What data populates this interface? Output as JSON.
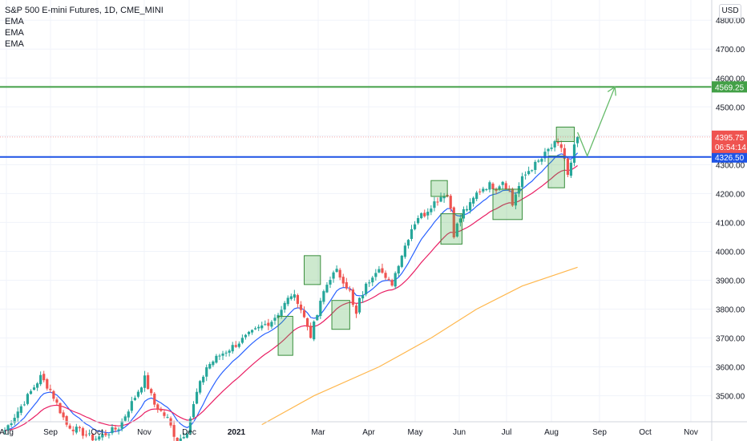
{
  "legend": {
    "title": "S&P 500 E-mini Futures, 1D, CME_MINI",
    "indicators": [
      "EMA",
      "EMA",
      "EMA"
    ]
  },
  "currency": "USD",
  "colors": {
    "up": "#26a69a",
    "down": "#ef5350",
    "ema_fast": "#2962ff",
    "ema_mid": "#e91e63",
    "ema_slow": "#ffb74d",
    "support_line": "#1e53e5",
    "target_line": "#43a047",
    "box_fill": "rgba(76,175,80,0.28)",
    "box_stroke": "#388e3c"
  },
  "chart_data": {
    "type": "candlestick",
    "title": "S&P 500 E-mini Futures, 1D, CME_MINI",
    "x_ticks": [
      "Aug",
      "Sep",
      "Oct",
      "Nov",
      "Dec",
      "2021",
      "Mar",
      "Apr",
      "May",
      "Jun",
      "Jul",
      "Aug",
      "Sep",
      "Oct",
      "Nov"
    ],
    "y_ticks": [
      "3500.00",
      "3600.00",
      "3700.00",
      "3800.00",
      "3900.00",
      "4000.00",
      "4100.00",
      "4200.00",
      "4300.00",
      "4400.00",
      "4500.00",
      "4600.00",
      "4700.00",
      "4800.00"
    ],
    "ylim": [
      3410,
      4870
    ],
    "horizontal_levels": [
      {
        "label": "4569.25",
        "value": 4569.25,
        "color": "#43a047"
      },
      {
        "label": "4326.50",
        "value": 4326.5,
        "color": "#1e53e5"
      }
    ],
    "last_price": {
      "label": "4395.75",
      "value": 4395.75,
      "countdown": "06:54:14"
    },
    "close_path": [
      {
        "d": 0,
        "v": 3380
      },
      {
        "d": 12,
        "v": 3480
      },
      {
        "d": 22,
        "v": 3565
      },
      {
        "d": 28,
        "v": 3520
      },
      {
        "d": 38,
        "v": 3400
      },
      {
        "d": 55,
        "v": 3350
      },
      {
        "d": 70,
        "v": 3390
      },
      {
        "d": 86,
        "v": 3560
      },
      {
        "d": 92,
        "v": 3470
      },
      {
        "d": 100,
        "v": 3420
      },
      {
        "d": 106,
        "v": 3340
      },
      {
        "d": 112,
        "v": 3380
      },
      {
        "d": 118,
        "v": 3510
      },
      {
        "d": 124,
        "v": 3600
      },
      {
        "d": 132,
        "v": 3640
      },
      {
        "d": 140,
        "v": 3670
      },
      {
        "d": 150,
        "v": 3710
      },
      {
        "d": 158,
        "v": 3740
      },
      {
        "d": 164,
        "v": 3760
      },
      {
        "d": 170,
        "v": 3800
      },
      {
        "d": 176,
        "v": 3850
      },
      {
        "d": 180,
        "v": 3830
      },
      {
        "d": 184,
        "v": 3770
      },
      {
        "d": 188,
        "v": 3710
      },
      {
        "d": 192,
        "v": 3780
      },
      {
        "d": 196,
        "v": 3860
      },
      {
        "d": 200,
        "v": 3910
      },
      {
        "d": 204,
        "v": 3930
      },
      {
        "d": 208,
        "v": 3900
      },
      {
        "d": 212,
        "v": 3860
      },
      {
        "d": 214,
        "v": 3810
      },
      {
        "d": 216,
        "v": 3780
      },
      {
        "d": 218,
        "v": 3830
      },
      {
        "d": 222,
        "v": 3880
      },
      {
        "d": 226,
        "v": 3920
      },
      {
        "d": 230,
        "v": 3950
      },
      {
        "d": 234,
        "v": 3900
      },
      {
        "d": 238,
        "v": 3890
      },
      {
        "d": 242,
        "v": 3960
      },
      {
        "d": 246,
        "v": 4020
      },
      {
        "d": 250,
        "v": 4080
      },
      {
        "d": 254,
        "v": 4120
      },
      {
        "d": 258,
        "v": 4130
      },
      {
        "d": 262,
        "v": 4160
      },
      {
        "d": 266,
        "v": 4180
      },
      {
        "d": 270,
        "v": 4200
      },
      {
        "d": 272,
        "v": 4190
      },
      {
        "d": 274,
        "v": 4150
      },
      {
        "d": 276,
        "v": 4060
      },
      {
        "d": 278,
        "v": 4090
      },
      {
        "d": 282,
        "v": 4140
      },
      {
        "d": 286,
        "v": 4160
      },
      {
        "d": 290,
        "v": 4200
      },
      {
        "d": 294,
        "v": 4220
      },
      {
        "d": 298,
        "v": 4230
      },
      {
        "d": 302,
        "v": 4220
      },
      {
        "d": 306,
        "v": 4245
      },
      {
        "d": 310,
        "v": 4210
      },
      {
        "d": 312,
        "v": 4160
      },
      {
        "d": 314,
        "v": 4200
      },
      {
        "d": 318,
        "v": 4250
      },
      {
        "d": 322,
        "v": 4280
      },
      {
        "d": 326,
        "v": 4300
      },
      {
        "d": 330,
        "v": 4320
      },
      {
        "d": 334,
        "v": 4350
      },
      {
        "d": 338,
        "v": 4370
      },
      {
        "d": 342,
        "v": 4360
      },
      {
        "d": 344,
        "v": 4320
      },
      {
        "d": 346,
        "v": 4260
      },
      {
        "d": 348,
        "v": 4300
      },
      {
        "d": 350,
        "v": 4360
      },
      {
        "d": 352,
        "v": 4395
      }
    ],
    "ema_slow_path": [
      {
        "d": 158,
        "v": 3400
      },
      {
        "d": 190,
        "v": 3500
      },
      {
        "d": 230,
        "v": 3600
      },
      {
        "d": 262,
        "v": 3700
      },
      {
        "d": 290,
        "v": 3800
      },
      {
        "d": 318,
        "v": 3880
      },
      {
        "d": 352,
        "v": 3945
      }
    ]
  },
  "annotations": {
    "boxes": [
      {
        "d1": 168,
        "d2": 177,
        "v1": 3640,
        "v2": 3775
      },
      {
        "d1": 184,
        "d2": 194,
        "v1": 3885,
        "v2": 3985
      },
      {
        "d1": 201,
        "d2": 212,
        "v1": 3730,
        "v2": 3830
      },
      {
        "d1": 262,
        "d2": 272,
        "v1": 4190,
        "v2": 4245
      },
      {
        "d1": 268,
        "d2": 281,
        "v1": 4025,
        "v2": 4130
      },
      {
        "d1": 300,
        "d2": 318,
        "v1": 4110,
        "v2": 4215
      },
      {
        "d1": 334,
        "d2": 344,
        "v1": 4220,
        "v2": 4330
      },
      {
        "d1": 339,
        "d2": 350,
        "v1": 4380,
        "v2": 4430
      }
    ],
    "projection": [
      {
        "d": 352,
        "v": 4412
      },
      {
        "d": 358,
        "v": 4330
      },
      {
        "d": 375,
        "v": 4569
      }
    ]
  }
}
